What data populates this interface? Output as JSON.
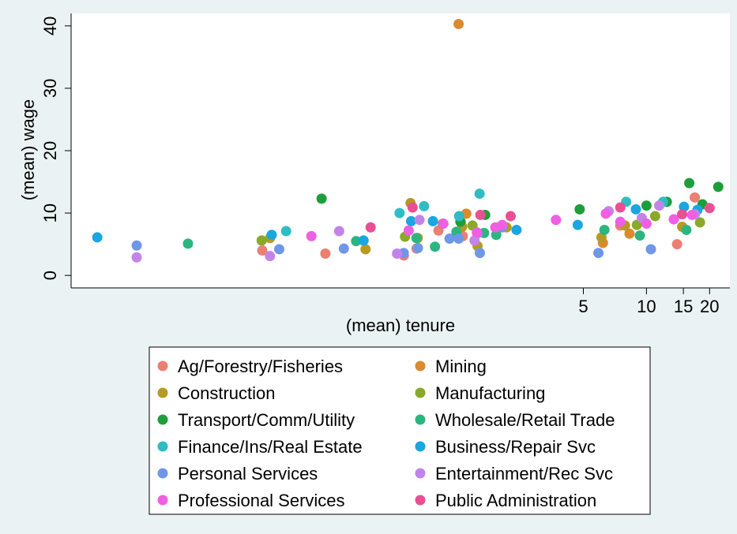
{
  "chart_data": {
    "type": "scatter",
    "xlabel": "(mean) tenure",
    "ylabel": "(mean) wage",
    "x_scale": "log",
    "xlim": [
      0.018,
      25
    ],
    "ylim": [
      -2,
      42
    ],
    "x_ticks": [
      5,
      10,
      15,
      20
    ],
    "y_ticks": [
      0,
      10,
      20,
      30,
      40
    ],
    "grid": false,
    "legend": {
      "position": "bottom",
      "columns": 2
    },
    "series": [
      {
        "name": "Ag/Forestry/Fisheries",
        "color": "#ea7f72",
        "points": [
          [
            0.147,
            4.0
          ],
          [
            0.294,
            3.5
          ],
          [
            0.696,
            3.2
          ],
          [
            0.8,
            4.3
          ],
          [
            1.018,
            7.2
          ],
          [
            1.33,
            6.3
          ],
          [
            7.5,
            8.0
          ],
          [
            14.0,
            5.0
          ],
          [
            17.0,
            12.5
          ]
        ]
      },
      {
        "name": "Mining",
        "color": "#db8a2e",
        "points": [
          [
            1.27,
            40.3
          ],
          [
            1.382,
            9.9
          ],
          [
            6.2,
            5.2
          ],
          [
            8.3,
            6.7
          ]
        ]
      },
      {
        "name": "Construction",
        "color": "#b59b24",
        "points": [
          [
            0.16,
            6.0
          ],
          [
            0.457,
            4.2
          ],
          [
            0.749,
            11.6
          ],
          [
            0.811,
            6.0
          ],
          [
            1.067,
            8.3
          ],
          [
            1.321,
            7.8
          ],
          [
            1.564,
            4.7
          ],
          [
            2.15,
            7.7
          ],
          [
            6.1,
            6.1
          ],
          [
            7.9,
            8.0
          ],
          [
            14.8,
            7.8
          ]
        ]
      },
      {
        "name": "Manufacturing",
        "color": "#8aa929",
        "points": [
          [
            0.146,
            5.6
          ],
          [
            0.705,
            6.2
          ],
          [
            1.3,
            8.6
          ],
          [
            1.48,
            8.0
          ],
          [
            2.0,
            7.8
          ],
          [
            9.0,
            8.1
          ],
          [
            11.0,
            9.5
          ],
          [
            18.0,
            8.5
          ]
        ]
      },
      {
        "name": "Transport/Comm/Utility",
        "color": "#1e9e3a",
        "points": [
          [
            0.282,
            12.3
          ],
          [
            1.295,
            8.6
          ],
          [
            1.7,
            9.7
          ],
          [
            4.8,
            10.6
          ],
          [
            10.0,
            11.2
          ],
          [
            12.5,
            11.8
          ],
          [
            16.0,
            14.8
          ],
          [
            18.5,
            11.4
          ],
          [
            22.0,
            14.2
          ]
        ]
      },
      {
        "name": "Wholesale/Retail Trade",
        "color": "#2bb57f",
        "points": [
          [
            0.065,
            5.1
          ],
          [
            0.412,
            5.5
          ],
          [
            0.799,
            6.0
          ],
          [
            0.98,
            4.6
          ],
          [
            1.24,
            7.0
          ],
          [
            1.68,
            6.8
          ],
          [
            1.92,
            6.5
          ],
          [
            6.3,
            7.3
          ],
          [
            9.3,
            6.4
          ],
          [
            15.5,
            7.3
          ]
        ]
      },
      {
        "name": "Finance/Ins/Real Estate",
        "color": "#2fbcc4",
        "points": [
          [
            0.191,
            7.1
          ],
          [
            0.664,
            10.0
          ],
          [
            0.869,
            11.1
          ],
          [
            1.277,
            9.5
          ],
          [
            1.599,
            13.1
          ],
          [
            8.0,
            11.8
          ],
          [
            12.0,
            11.8
          ]
        ]
      },
      {
        "name": "Business/Repair Svc",
        "color": "#1aa6e0",
        "points": [
          [
            0.024,
            6.1
          ],
          [
            0.163,
            6.5
          ],
          [
            0.447,
            5.6
          ],
          [
            0.754,
            8.7
          ],
          [
            0.958,
            8.7
          ],
          [
            2.4,
            7.3
          ],
          [
            4.7,
            8.1
          ],
          [
            8.9,
            10.6
          ],
          [
            15.1,
            11.0
          ],
          [
            17.5,
            10.5
          ]
        ]
      },
      {
        "name": "Personal Services",
        "color": "#6f97e8",
        "points": [
          [
            0.037,
            4.8
          ],
          [
            0.177,
            4.2
          ],
          [
            0.36,
            4.3
          ],
          [
            0.695,
            3.6
          ],
          [
            0.812,
            4.4
          ],
          [
            1.15,
            5.9
          ],
          [
            1.271,
            5.9
          ],
          [
            1.604,
            3.6
          ],
          [
            2.05,
            7.7
          ],
          [
            5.9,
            3.6
          ],
          [
            10.5,
            4.2
          ]
        ]
      },
      {
        "name": "Entertainment/Rec Svc",
        "color": "#c384e9",
        "points": [
          [
            0.037,
            2.9
          ],
          [
            0.16,
            3.1
          ],
          [
            0.342,
            7.1
          ],
          [
            0.646,
            3.5
          ],
          [
            0.827,
            8.9
          ],
          [
            1.513,
            5.6
          ],
          [
            1.56,
            6.7
          ],
          [
            6.6,
            10.3
          ],
          [
            9.5,
            9.2
          ],
          [
            11.5,
            11.2
          ],
          [
            17.0,
            9.8
          ]
        ]
      },
      {
        "name": "Professional Services",
        "color": "#ef5fe3",
        "points": [
          [
            0.252,
            6.3
          ],
          [
            0.734,
            7.2
          ],
          [
            1.074,
            8.3
          ],
          [
            1.552,
            6.9
          ],
          [
            1.9,
            7.7
          ],
          [
            2.05,
            8.1
          ],
          [
            3.7,
            8.9
          ],
          [
            6.4,
            9.9
          ],
          [
            7.5,
            8.6
          ],
          [
            10.0,
            8.3
          ],
          [
            13.5,
            9.0
          ],
          [
            16.5,
            9.7
          ]
        ]
      },
      {
        "name": "Public Administration",
        "color": "#ea4f93",
        "points": [
          [
            0.483,
            7.7
          ],
          [
            0.766,
            10.9
          ],
          [
            1.613,
            9.7
          ],
          [
            2.25,
            9.5
          ],
          [
            7.5,
            10.9
          ],
          [
            14.8,
            9.8
          ],
          [
            20.0,
            10.8
          ]
        ]
      }
    ]
  }
}
